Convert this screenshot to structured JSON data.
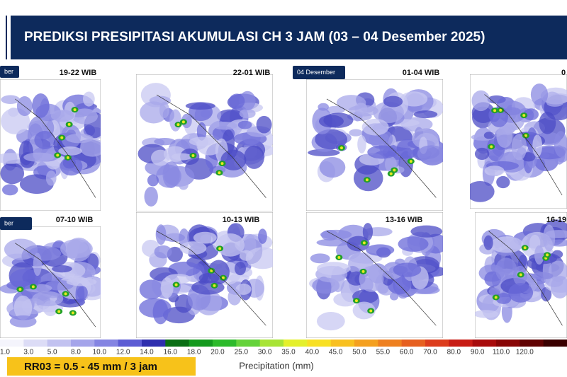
{
  "header": {
    "title": "PREDIKSI PRESIPITASI AKUMULASI CH 3 JAM (03 – 04 Desember 2025)"
  },
  "panels": [
    {
      "label": "19-22 WIB",
      "tag": "ber"
    },
    {
      "label": "22-01 WIB"
    },
    {
      "label": "01-04 WIB",
      "tag": "04 Desember"
    },
    {
      "label": "0"
    },
    {
      "label": "07-10 WIB",
      "tag": "ber"
    },
    {
      "label": "10-13 WIB"
    },
    {
      "label": "13-16 WIB"
    },
    {
      "label": "16-19"
    }
  ],
  "colorbar": {
    "title": "Precipitation (mm)",
    "labels": [
      "1.0",
      "3.0",
      "5.0",
      "8.0",
      "10.0",
      "12.0",
      "14.0",
      "16.0",
      "18.0",
      "20.0",
      "25.0",
      "30.0",
      "35.0",
      "40.0",
      "45.0",
      "50.0",
      "55.0",
      "60.0",
      "70.0",
      "80.0",
      "90.0",
      "110.0",
      "120.0"
    ],
    "colors": [
      "#f4f4fc",
      "#dcdcf6",
      "#c2c2f0",
      "#a4a4ea",
      "#8484e2",
      "#5c5cd4",
      "#2e2eae",
      "#0a6e14",
      "#149a1e",
      "#2cba2a",
      "#64d23a",
      "#a8e436",
      "#e4f02c",
      "#f8e024",
      "#f8c020",
      "#f4a020",
      "#ee8020",
      "#e66020",
      "#dc3c1c",
      "#c81c14",
      "#a80c0c",
      "#880606",
      "#600202",
      "#3a0000"
    ]
  },
  "footer": {
    "note": "RR03 = 0.5 - 45 mm / 3 jam"
  }
}
